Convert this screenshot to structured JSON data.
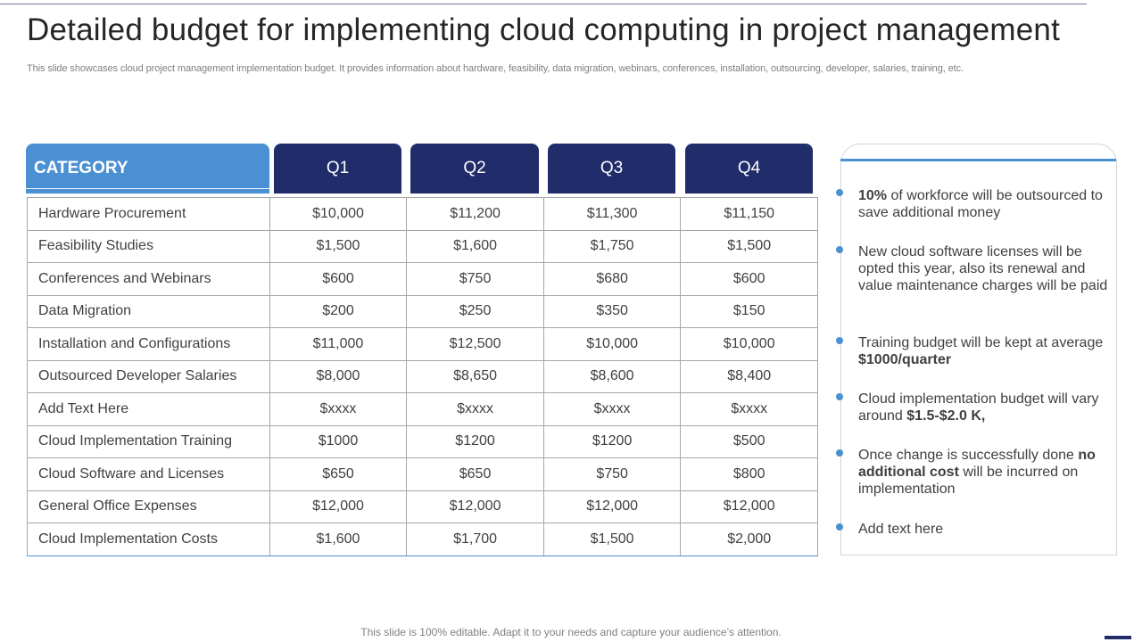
{
  "slide": {
    "title": "Detailed budget for implementing cloud computing in project management",
    "subtitle": "This slide showcases cloud project management implementation budget. It provides information about hardware, feasibility, data migration, webinars, conferences, installation, outsourcing, developer, salaries, training, etc.",
    "footer": "This slide is 100% editable. Adapt it to your needs and capture your audience’s attention."
  },
  "table": {
    "headers": [
      "CATEGORY",
      "Q1",
      "Q2",
      "Q3",
      "Q4"
    ],
    "rows": [
      [
        "Hardware Procurement",
        "$10,000",
        "$11,200",
        "$11,300",
        "$11,150"
      ],
      [
        "Feasibility Studies",
        "$1,500",
        "$1,600",
        "$1,750",
        "$1,500"
      ],
      [
        "Conferences and Webinars",
        "$600",
        "$750",
        "$680",
        "$600"
      ],
      [
        "Data Migration",
        "$200",
        "$250",
        "$350",
        "$150"
      ],
      [
        "Installation  and Configurations",
        "$11,000",
        "$12,500",
        "$10,000",
        "$10,000"
      ],
      [
        "Outsourced  Developer Salaries",
        "$8,000",
        "$8,650",
        "$8,600",
        "$8,400"
      ],
      [
        "Add Text Here",
        "$xxxx",
        "$xxxx",
        "$xxxx",
        "$xxxx"
      ],
      [
        "Cloud Implementation  Training",
        "$1000",
        "$1200",
        "$1200",
        "$500"
      ],
      [
        "Cloud Software and Licenses",
        "$650",
        "$650",
        "$750",
        "$800"
      ],
      [
        "General Office Expenses",
        "$12,000",
        "$12,000",
        "$12,000",
        "$12,000"
      ],
      [
        "Cloud Implementation  Costs",
        "$1,600",
        "$1,700",
        "$1,500",
        "$2,000"
      ]
    ]
  },
  "notes": [
    {
      "bold": "10%",
      "text": " of workforce will be outsourced to save additional money"
    },
    {
      "bold": "",
      "text": "New cloud software licenses will be opted this year, also its renewal and value maintenance charges will be paid"
    },
    {
      "pre": "Training budget will be kept at average ",
      "bold": "$1000/quarter",
      "text": ""
    },
    {
      "pre": "Cloud implementation budget will vary around ",
      "bold": "$1.5-$2.0 K,",
      "text": ""
    },
    {
      "pre": "Once change is successfully  done ",
      "bold": "no additional cost",
      "text": " will be incurred on implementation"
    },
    {
      "bold": "",
      "text": "Add text here"
    }
  ],
  "colors": {
    "accent_blue": "#4a90d2",
    "navy": "#202d6a"
  }
}
